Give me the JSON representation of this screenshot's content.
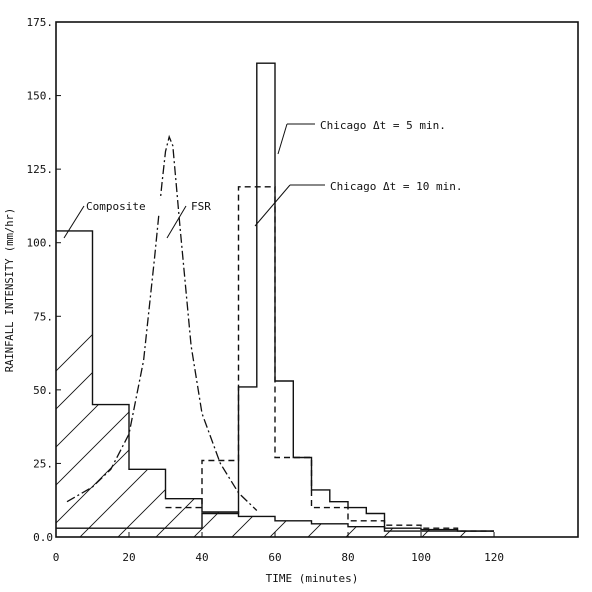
{
  "chart_data": {
    "type": "line",
    "title": "",
    "xlabel": "TIME (minutes)",
    "ylabel": "RAINFALL INTENSITY (mm/hr)",
    "xlim": [
      0,
      143
    ],
    "ylim": [
      0,
      175
    ],
    "x_ticks": [
      0,
      20,
      40,
      60,
      80,
      100,
      120
    ],
    "x_tick_labels": [
      "0",
      "20",
      "40",
      "60",
      "80",
      "100",
      "120"
    ],
    "y_ticks": [
      0,
      25,
      50,
      75,
      100,
      125,
      150,
      175
    ],
    "y_tick_labels": [
      "0.0",
      "25.",
      "50.",
      "75.",
      "100.",
      "125.",
      "150.",
      "175."
    ],
    "grid": false,
    "legend": "none",
    "series": [
      {
        "name": "Composite",
        "style": "solid-step-hatched",
        "x": [
          0,
          10,
          10,
          20,
          20,
          30,
          30,
          40,
          40,
          50,
          50,
          60,
          60,
          70,
          70,
          80,
          80,
          90,
          90,
          100,
          100,
          110,
          110,
          120
        ],
        "y": [
          104,
          104,
          45,
          45,
          23,
          23,
          13,
          13,
          8.5,
          8.5,
          7,
          7,
          5.5,
          5.5,
          4.5,
          4.5,
          3.5,
          3.5,
          3,
          3,
          2.5,
          2.5,
          2,
          2
        ]
      },
      {
        "name": "FSR",
        "style": "dash-dot",
        "x": [
          3,
          10,
          15,
          20,
          24,
          27,
          29,
          30,
          31,
          32,
          34,
          37,
          40,
          45,
          50,
          55
        ],
        "y": [
          12,
          17,
          23,
          35,
          60,
          95,
          120,
          131,
          136,
          133,
          105,
          65,
          42,
          25,
          15,
          9
        ]
      },
      {
        "name": "Chicago Δt = 5 min.",
        "style": "solid-step",
        "x": [
          0,
          40,
          40,
          50,
          50,
          55,
          55,
          60,
          60,
          65,
          65,
          70,
          70,
          75,
          75,
          80,
          80,
          85,
          85,
          90,
          90,
          120
        ],
        "y": [
          3,
          3,
          8,
          8,
          51,
          51,
          161,
          161,
          53,
          53,
          27,
          27,
          16,
          16,
          12,
          12,
          10,
          10,
          8,
          8,
          2,
          2
        ]
      },
      {
        "name": "Chicago Δt = 10 min.",
        "style": "dashed-step",
        "x": [
          30,
          40,
          40,
          50,
          50,
          60,
          60,
          70,
          70,
          80,
          80,
          90,
          90,
          100,
          100,
          110,
          110,
          120
        ],
        "y": [
          10,
          10,
          26,
          26,
          119,
          119,
          27,
          27,
          10,
          10,
          5.5,
          5.5,
          4,
          4,
          3,
          3,
          2,
          2
        ]
      }
    ],
    "annotations": [
      {
        "text": "Composite",
        "series": "Composite"
      },
      {
        "text": "FSR",
        "series": "FSR"
      },
      {
        "text": "Chicago Δt = 5 min.",
        "series": "Chicago Δt = 5 min."
      },
      {
        "text": "Chicago Δt = 10 min.",
        "series": "Chicago Δt = 10 min."
      }
    ]
  }
}
